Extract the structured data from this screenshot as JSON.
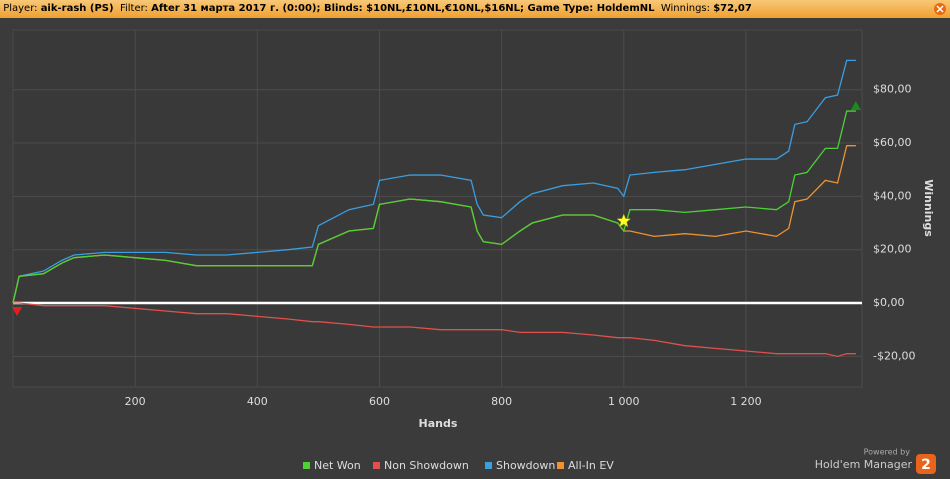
{
  "header": {
    "player_label": "Player:",
    "player": "aik-rash (PS)",
    "filter_label": "Filter:",
    "filter": "After 31 марта 2017 г. (0:00); Blinds: $10NL,£10NL,€10NL,$16NL; Game Type: HoldemNL",
    "winnings_label": "Winnings:",
    "winnings": "$72,07"
  },
  "chart_data": {
    "type": "line",
    "x_label": "Hands",
    "y_label": "Winnings",
    "x": [
      0,
      10,
      50,
      80,
      100,
      150,
      200,
      250,
      300,
      350,
      400,
      450,
      490,
      500,
      550,
      590,
      600,
      650,
      700,
      750,
      760,
      770,
      800,
      830,
      850,
      900,
      950,
      990,
      1000,
      1010,
      1050,
      1100,
      1150,
      1200,
      1250,
      1270,
      1280,
      1300,
      1330,
      1350,
      1365,
      1380
    ],
    "series": [
      {
        "name": "Net Won",
        "color": "#4cd137",
        "values": [
          0,
          10,
          11,
          15,
          17,
          18,
          17,
          16,
          14,
          14,
          14,
          14,
          14,
          22,
          27,
          28,
          37,
          39,
          38,
          36,
          27,
          23,
          22,
          27,
          30,
          33,
          33,
          30,
          27,
          35,
          35,
          34,
          35,
          36,
          35,
          38,
          48,
          49,
          58,
          58,
          72,
          72
        ]
      },
      {
        "name": "Non Showdown",
        "color": "#e0504c",
        "values": [
          0,
          0,
          -1,
          -1,
          -1,
          -1,
          -2,
          -3,
          -4,
          -4,
          -5,
          -6,
          -7,
          -7,
          -8,
          -9,
          -9,
          -9,
          -10,
          -10,
          -10,
          -10,
          -10,
          -11,
          -11,
          -11,
          -12,
          -13,
          -13,
          -13,
          -14,
          -16,
          -17,
          -18,
          -19,
          -19,
          -19,
          -19,
          -19,
          -20,
          -19,
          -19
        ]
      },
      {
        "name": "Showdown",
        "color": "#3a9ee0",
        "values": [
          0,
          10,
          12,
          16,
          18,
          19,
          19,
          19,
          18,
          18,
          19,
          20,
          21,
          29,
          35,
          37,
          46,
          48,
          48,
          46,
          37,
          33,
          32,
          38,
          41,
          44,
          45,
          43,
          40,
          48,
          49,
          50,
          52,
          54,
          54,
          57,
          67,
          68,
          77,
          78,
          91,
          91
        ]
      },
      {
        "name": "All-In EV",
        "color": "#f0922e",
        "values": [
          0,
          10,
          11,
          15,
          17,
          18,
          17,
          16,
          14,
          14,
          14,
          14,
          14,
          22,
          27,
          28,
          37,
          39,
          38,
          36,
          27,
          23,
          22,
          27,
          30,
          33,
          33,
          30,
          27,
          27,
          25,
          26,
          25,
          27,
          25,
          28,
          38,
          39,
          46,
          45,
          59,
          59
        ]
      }
    ],
    "xlim": [
      0,
      1390
    ],
    "ylim": [
      -31.5,
      102.4
    ],
    "xticks": [
      200,
      400,
      600,
      800,
      {
        "value": 1000,
        "label": "1 000"
      },
      {
        "value": 1200,
        "label": "1 200"
      }
    ],
    "yticks": [
      {
        "value": -20,
        "label": "-$20,00"
      },
      {
        "value": 0,
        "label": "$0,00"
      },
      {
        "value": 20,
        "label": "$20,00"
      },
      {
        "value": 40,
        "label": "$40,00"
      },
      {
        "value": 60,
        "label": "$60,00"
      },
      {
        "value": 80,
        "label": "$80,00"
      }
    ],
    "grid": true
  },
  "footer": {
    "powered": "Powered by",
    "brand": "Hold'em Manager",
    "version": "2"
  }
}
